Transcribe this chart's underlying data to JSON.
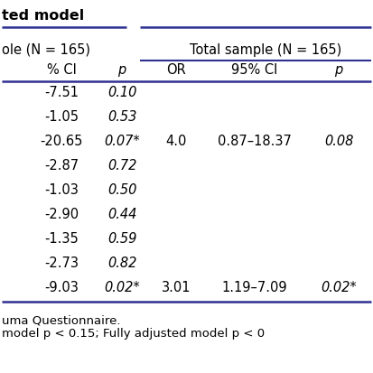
{
  "title_line1": "ted model",
  "header1": "ole (N = 165)",
  "header2": "Total sample (N = 165)",
  "col_headers": [
    "% CI",
    "p",
    "OR",
    "95% CI",
    "p"
  ],
  "rows": [
    [
      "-7.51",
      "0.10",
      "",
      "",
      ""
    ],
    [
      "-1.05",
      "0.53",
      "",
      "",
      ""
    ],
    [
      "-20.65",
      "0.07*",
      "4.0",
      "0.87–18.37",
      "0.08"
    ],
    [
      "-2.87",
      "0.72",
      "",
      "",
      ""
    ],
    [
      "-1.03",
      "0.50",
      "",
      "",
      ""
    ],
    [
      "-2.90",
      "0.44",
      "",
      "",
      ""
    ],
    [
      "-1.35",
      "0.59",
      "",
      "",
      ""
    ],
    [
      "-2.73",
      "0.82",
      "",
      "",
      ""
    ],
    [
      "-9.03",
      "0.02*",
      "3.01",
      "1.19–7.09",
      "0.02*"
    ]
  ],
  "footnote1": "uma Questionnaire.",
  "footnote2": "model p < 0.15; Fully adjusted model p < 0",
  "line_color": "#2E3192",
  "bg_color": "#ffffff",
  "text_color": "#000000",
  "font_size": 10.5,
  "footnote_font_size": 9.5,
  "title_font_size": 11.5,
  "fig_width": 4.13,
  "fig_height": 4.13,
  "dpi": 100
}
